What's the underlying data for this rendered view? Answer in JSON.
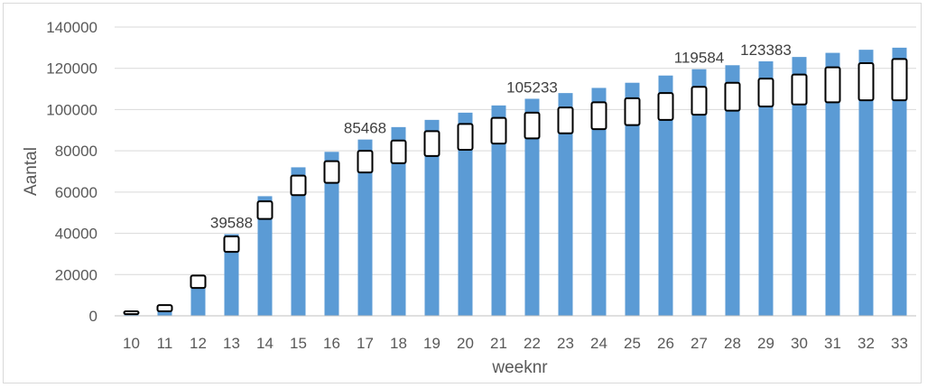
{
  "chart_data": {
    "type": "bar",
    "title": "",
    "xlabel": "weeknr",
    "ylabel": "Aantal",
    "ylim": [
      0,
      140000
    ],
    "yticks": [
      "0",
      "20000",
      "40000",
      "60000",
      "80000",
      "100000",
      "120000",
      "140000"
    ],
    "grid": true,
    "bar_color": "#5b9bd5",
    "categories": [
      "10",
      "11",
      "12",
      "13",
      "14",
      "15",
      "16",
      "17",
      "18",
      "19",
      "20",
      "21",
      "22",
      "23",
      "24",
      "25",
      "26",
      "27",
      "28",
      "29",
      "30",
      "31",
      "32",
      "33"
    ],
    "values": [
      1500,
      3500,
      17500,
      39588,
      58000,
      72000,
      79500,
      85468,
      91500,
      95000,
      98500,
      102000,
      105233,
      108000,
      110500,
      113000,
      116500,
      119584,
      121500,
      123383,
      125500,
      127500,
      129000,
      130000
    ],
    "intervals": [
      [
        800,
        2200
      ],
      [
        2200,
        5200
      ],
      [
        13500,
        19500
      ],
      [
        31000,
        38500
      ],
      [
        47000,
        55500
      ],
      [
        58500,
        68000
      ],
      [
        64500,
        75000
      ],
      [
        69500,
        80000
      ],
      [
        74000,
        85000
      ],
      [
        77500,
        89500
      ],
      [
        80500,
        93000
      ],
      [
        83500,
        96000
      ],
      [
        86000,
        98500
      ],
      [
        88500,
        101000
      ],
      [
        90500,
        103500
      ],
      [
        92500,
        105500
      ],
      [
        95000,
        108000
      ],
      [
        97500,
        111000
      ],
      [
        99500,
        113000
      ],
      [
        101500,
        115000
      ],
      [
        102500,
        117000
      ],
      [
        103500,
        120500
      ],
      [
        104500,
        122500
      ],
      [
        104500,
        124500
      ]
    ],
    "data_labels": [
      {
        "category": "13",
        "text": "39588"
      },
      {
        "category": "17",
        "text": "85468"
      },
      {
        "category": "22",
        "text": "105233"
      },
      {
        "category": "27",
        "text": "119584"
      },
      {
        "category": "29",
        "text": "123383"
      }
    ]
  }
}
